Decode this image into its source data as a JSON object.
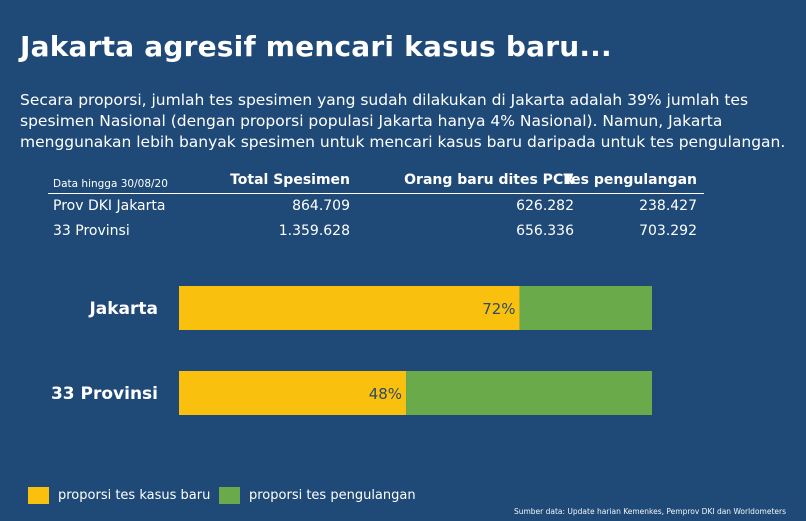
{
  "title": "Jakarta agresif mencari kasus baru...",
  "description": "Secara proporsi, jumlah tes spesimen yang sudah dilakukan di Jakarta adalah 39% jumlah tes spesimen Nasional (dengan proporsi populasi Jakarta hanya 4% Nasional). Namun, Jakarta menggunakan lebih banyak spesimen untuk mencari kasus baru daripada untuk tes pengulangan.",
  "table": {
    "note": "Data hingga 30/08/20",
    "columns": [
      "Total Spesimen",
      "Orang baru dites PCR",
      "Tes pengulangan"
    ],
    "rows": [
      {
        "name": "Prov DKI Jakarta",
        "values": [
          "864.709",
          "626.282",
          "238.427"
        ]
      },
      {
        "name": "33 Provinsi",
        "values": [
          "1.359.628",
          "656.336",
          "703.292"
        ]
      }
    ]
  },
  "colors": {
    "background": "#1f4a78",
    "new_case": "#f9c10d",
    "repeat": "#6aaa4a",
    "text": "#ffffff",
    "bar_label": "#2e4a66"
  },
  "chart_data": {
    "type": "bar",
    "orientation": "horizontal",
    "stacked": true,
    "normalized": true,
    "categories": [
      "Jakarta",
      "33 Provinsi"
    ],
    "series": [
      {
        "name": "proporsi tes kasus baru",
        "values": [
          72,
          48
        ],
        "labels": [
          "72%",
          "48%"
        ]
      },
      {
        "name": "proporsi tes pengulangan",
        "values": [
          28,
          52
        ]
      }
    ],
    "xlim": [
      0,
      100
    ],
    "legend": "bottom-left",
    "grid": false
  },
  "source": "Sumber data: Update harian Kemenkes, Pemprov DKI dan Worldometers"
}
